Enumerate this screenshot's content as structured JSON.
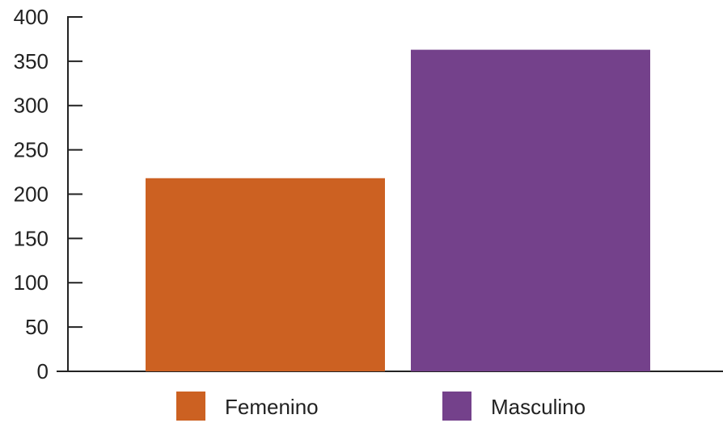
{
  "chart_data": {
    "type": "bar",
    "categories": [
      "Femenino",
      "Masculino"
    ],
    "values": [
      218,
      363
    ],
    "colors": [
      "#cc6122",
      "#74418b"
    ],
    "ylim": [
      0,
      400
    ],
    "yticks": [
      0,
      50,
      100,
      150,
      200,
      250,
      300,
      350,
      400
    ],
    "legend": "bottom"
  }
}
